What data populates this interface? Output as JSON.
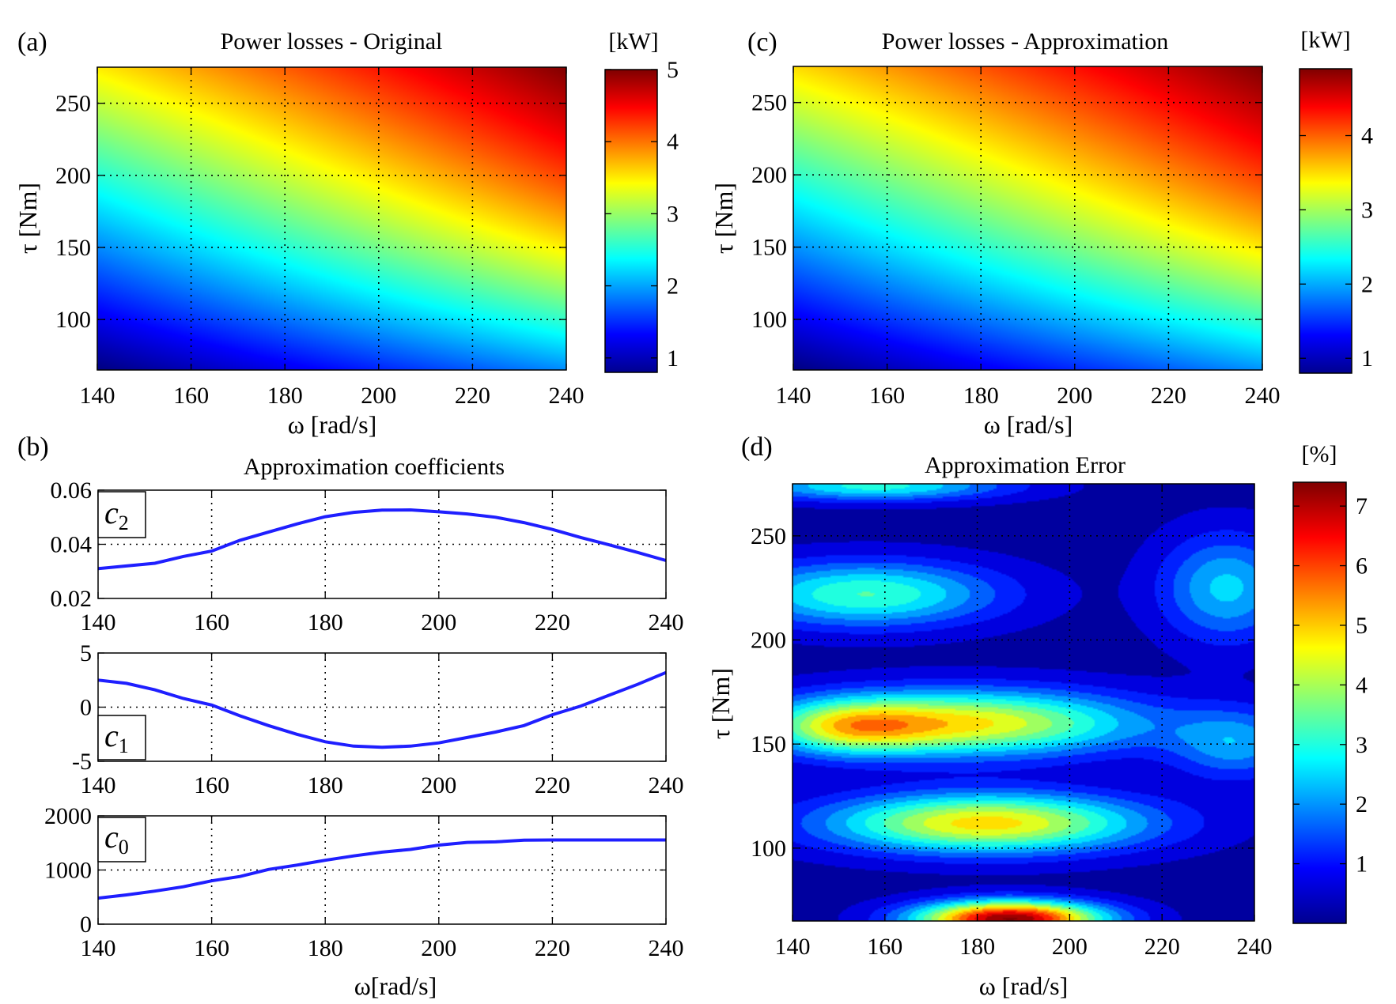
{
  "colors": {
    "jet": [
      "#00008f",
      "#0000ff",
      "#007fff",
      "#00ffff",
      "#7fff7f",
      "#ffff00",
      "#ff7f00",
      "#ff0000",
      "#7f0000"
    ],
    "line": "#1f1fff",
    "grid": "#000000"
  },
  "chart_data": [
    {
      "id": "a",
      "panel_label": "(a)",
      "type": "heatmap",
      "title": "Power losses - Original",
      "xlabel": "ω [rad/s]",
      "ylabel": "τ [Nm]",
      "xlim": [
        140,
        240
      ],
      "ylim": [
        65,
        275
      ],
      "xticks": [
        "140",
        "160",
        "180",
        "200",
        "220",
        "240"
      ],
      "yticks": [
        "100",
        "150",
        "200",
        "250"
      ],
      "colorbar": {
        "unit": "[kW]",
        "range": [
          0.8,
          5
        ],
        "ticks": [
          "1",
          "2",
          "3",
          "4",
          "5"
        ]
      },
      "grid": true,
      "surface": {
        "x": [
          140,
          240
        ],
        "y": [
          65,
          275
        ],
        "z_corners": {
          "x140_y65": 0.8,
          "x240_y65": 1.9,
          "x140_y275": 3.5,
          "x240_y275": 5.0
        }
      }
    },
    {
      "id": "c",
      "panel_label": "(c)",
      "type": "heatmap",
      "title": "Power losses - Approximation",
      "xlabel": "ω [rad/s]",
      "ylabel": "τ [Nm]",
      "xlim": [
        140,
        240
      ],
      "ylim": [
        65,
        275
      ],
      "xticks": [
        "140",
        "160",
        "180",
        "200",
        "220",
        "240"
      ],
      "yticks": [
        "100",
        "150",
        "200",
        "250"
      ],
      "colorbar": {
        "unit": "[kW]",
        "range": [
          0.8,
          4.9
        ],
        "ticks": [
          "1",
          "2",
          "3",
          "4"
        ]
      },
      "grid": true,
      "surface": {
        "x": [
          140,
          240
        ],
        "y": [
          65,
          275
        ],
        "z_corners": {
          "x140_y65": 0.8,
          "x240_y65": 1.9,
          "x140_y275": 3.5,
          "x240_y275": 4.9
        }
      }
    },
    {
      "id": "b",
      "panel_label": "(b)",
      "type": "line",
      "title": "Approximation coefficients",
      "xlabel": "ω[rad/s]",
      "xticks": [
        "140",
        "160",
        "180",
        "200",
        "220",
        "240"
      ],
      "grid": true,
      "subplots": [
        {
          "label": "c2",
          "ylim": [
            0.02,
            0.06
          ],
          "yticks": [
            "0.02",
            "0.04",
            "0.06"
          ],
          "x": [
            140,
            145,
            150,
            155,
            160,
            165,
            170,
            175,
            180,
            185,
            190,
            195,
            200,
            205,
            210,
            215,
            220,
            225,
            230,
            235,
            240
          ],
          "y": [
            0.031,
            0.032,
            0.033,
            0.0355,
            0.0375,
            0.0415,
            0.0445,
            0.0475,
            0.0502,
            0.0518,
            0.0526,
            0.0527,
            0.052,
            0.0512,
            0.05,
            0.048,
            0.0455,
            0.0425,
            0.0398,
            0.037,
            0.034
          ]
        },
        {
          "label": "c1",
          "ylim": [
            -5,
            5
          ],
          "yticks": [
            "-5",
            "0",
            "5"
          ],
          "x": [
            140,
            145,
            150,
            155,
            160,
            165,
            170,
            175,
            180,
            185,
            190,
            195,
            200,
            205,
            210,
            215,
            220,
            225,
            230,
            235,
            240
          ],
          "y": [
            2.5,
            2.2,
            1.6,
            0.8,
            0.2,
            -0.8,
            -1.7,
            -2.5,
            -3.2,
            -3.6,
            -3.7,
            -3.6,
            -3.3,
            -2.8,
            -2.3,
            -1.7,
            -0.7,
            0.1,
            1.1,
            2.1,
            3.2
          ]
        },
        {
          "label": "c0",
          "ylim": [
            0,
            2000
          ],
          "yticks": [
            "0",
            "1000",
            "2000"
          ],
          "x": [
            140,
            145,
            150,
            155,
            160,
            165,
            170,
            175,
            180,
            185,
            190,
            195,
            200,
            205,
            210,
            215,
            220,
            225,
            230,
            235,
            240
          ],
          "y": [
            480,
            540,
            610,
            690,
            800,
            880,
            1010,
            1090,
            1180,
            1260,
            1330,
            1380,
            1460,
            1510,
            1520,
            1550,
            1555,
            1555,
            1555,
            1555,
            1555
          ]
        }
      ]
    },
    {
      "id": "d",
      "panel_label": "(d)",
      "type": "heatmap",
      "title": "Approximation Error",
      "xlabel": "ω [rad/s]",
      "ylabel": "τ [Nm]",
      "xlim": [
        140,
        240
      ],
      "ylim": [
        65,
        275
      ],
      "xticks": [
        "140",
        "160",
        "180",
        "200",
        "220",
        "240"
      ],
      "yticks": [
        "100",
        "150",
        "200",
        "250"
      ],
      "colorbar": {
        "unit": "[%]",
        "range": [
          0,
          7.4
        ],
        "ticks": [
          "1",
          "2",
          "3",
          "4",
          "5",
          "6",
          "7"
        ]
      },
      "grid": true,
      "blobs": [
        {
          "x": 187,
          "y": 66,
          "peak": 7.2,
          "sx": 14,
          "sy": 6
        },
        {
          "x": 182,
          "y": 112,
          "peak": 4.6,
          "sx": 24,
          "sy": 10
        },
        {
          "x": 178,
          "y": 160,
          "peak": 4.4,
          "sx": 26,
          "sy": 11
        },
        {
          "x": 152,
          "y": 158,
          "peak": 2.6,
          "sx": 12,
          "sy": 9
        },
        {
          "x": 156,
          "y": 222,
          "peak": 3.0,
          "sx": 20,
          "sy": 11
        },
        {
          "x": 158,
          "y": 274,
          "peak": 2.7,
          "sx": 20,
          "sy": 5
        },
        {
          "x": 234,
          "y": 225,
          "peak": 2.2,
          "sx": 10,
          "sy": 18
        },
        {
          "x": 236,
          "y": 150,
          "peak": 1.8,
          "sx": 10,
          "sy": 12
        }
      ]
    }
  ]
}
